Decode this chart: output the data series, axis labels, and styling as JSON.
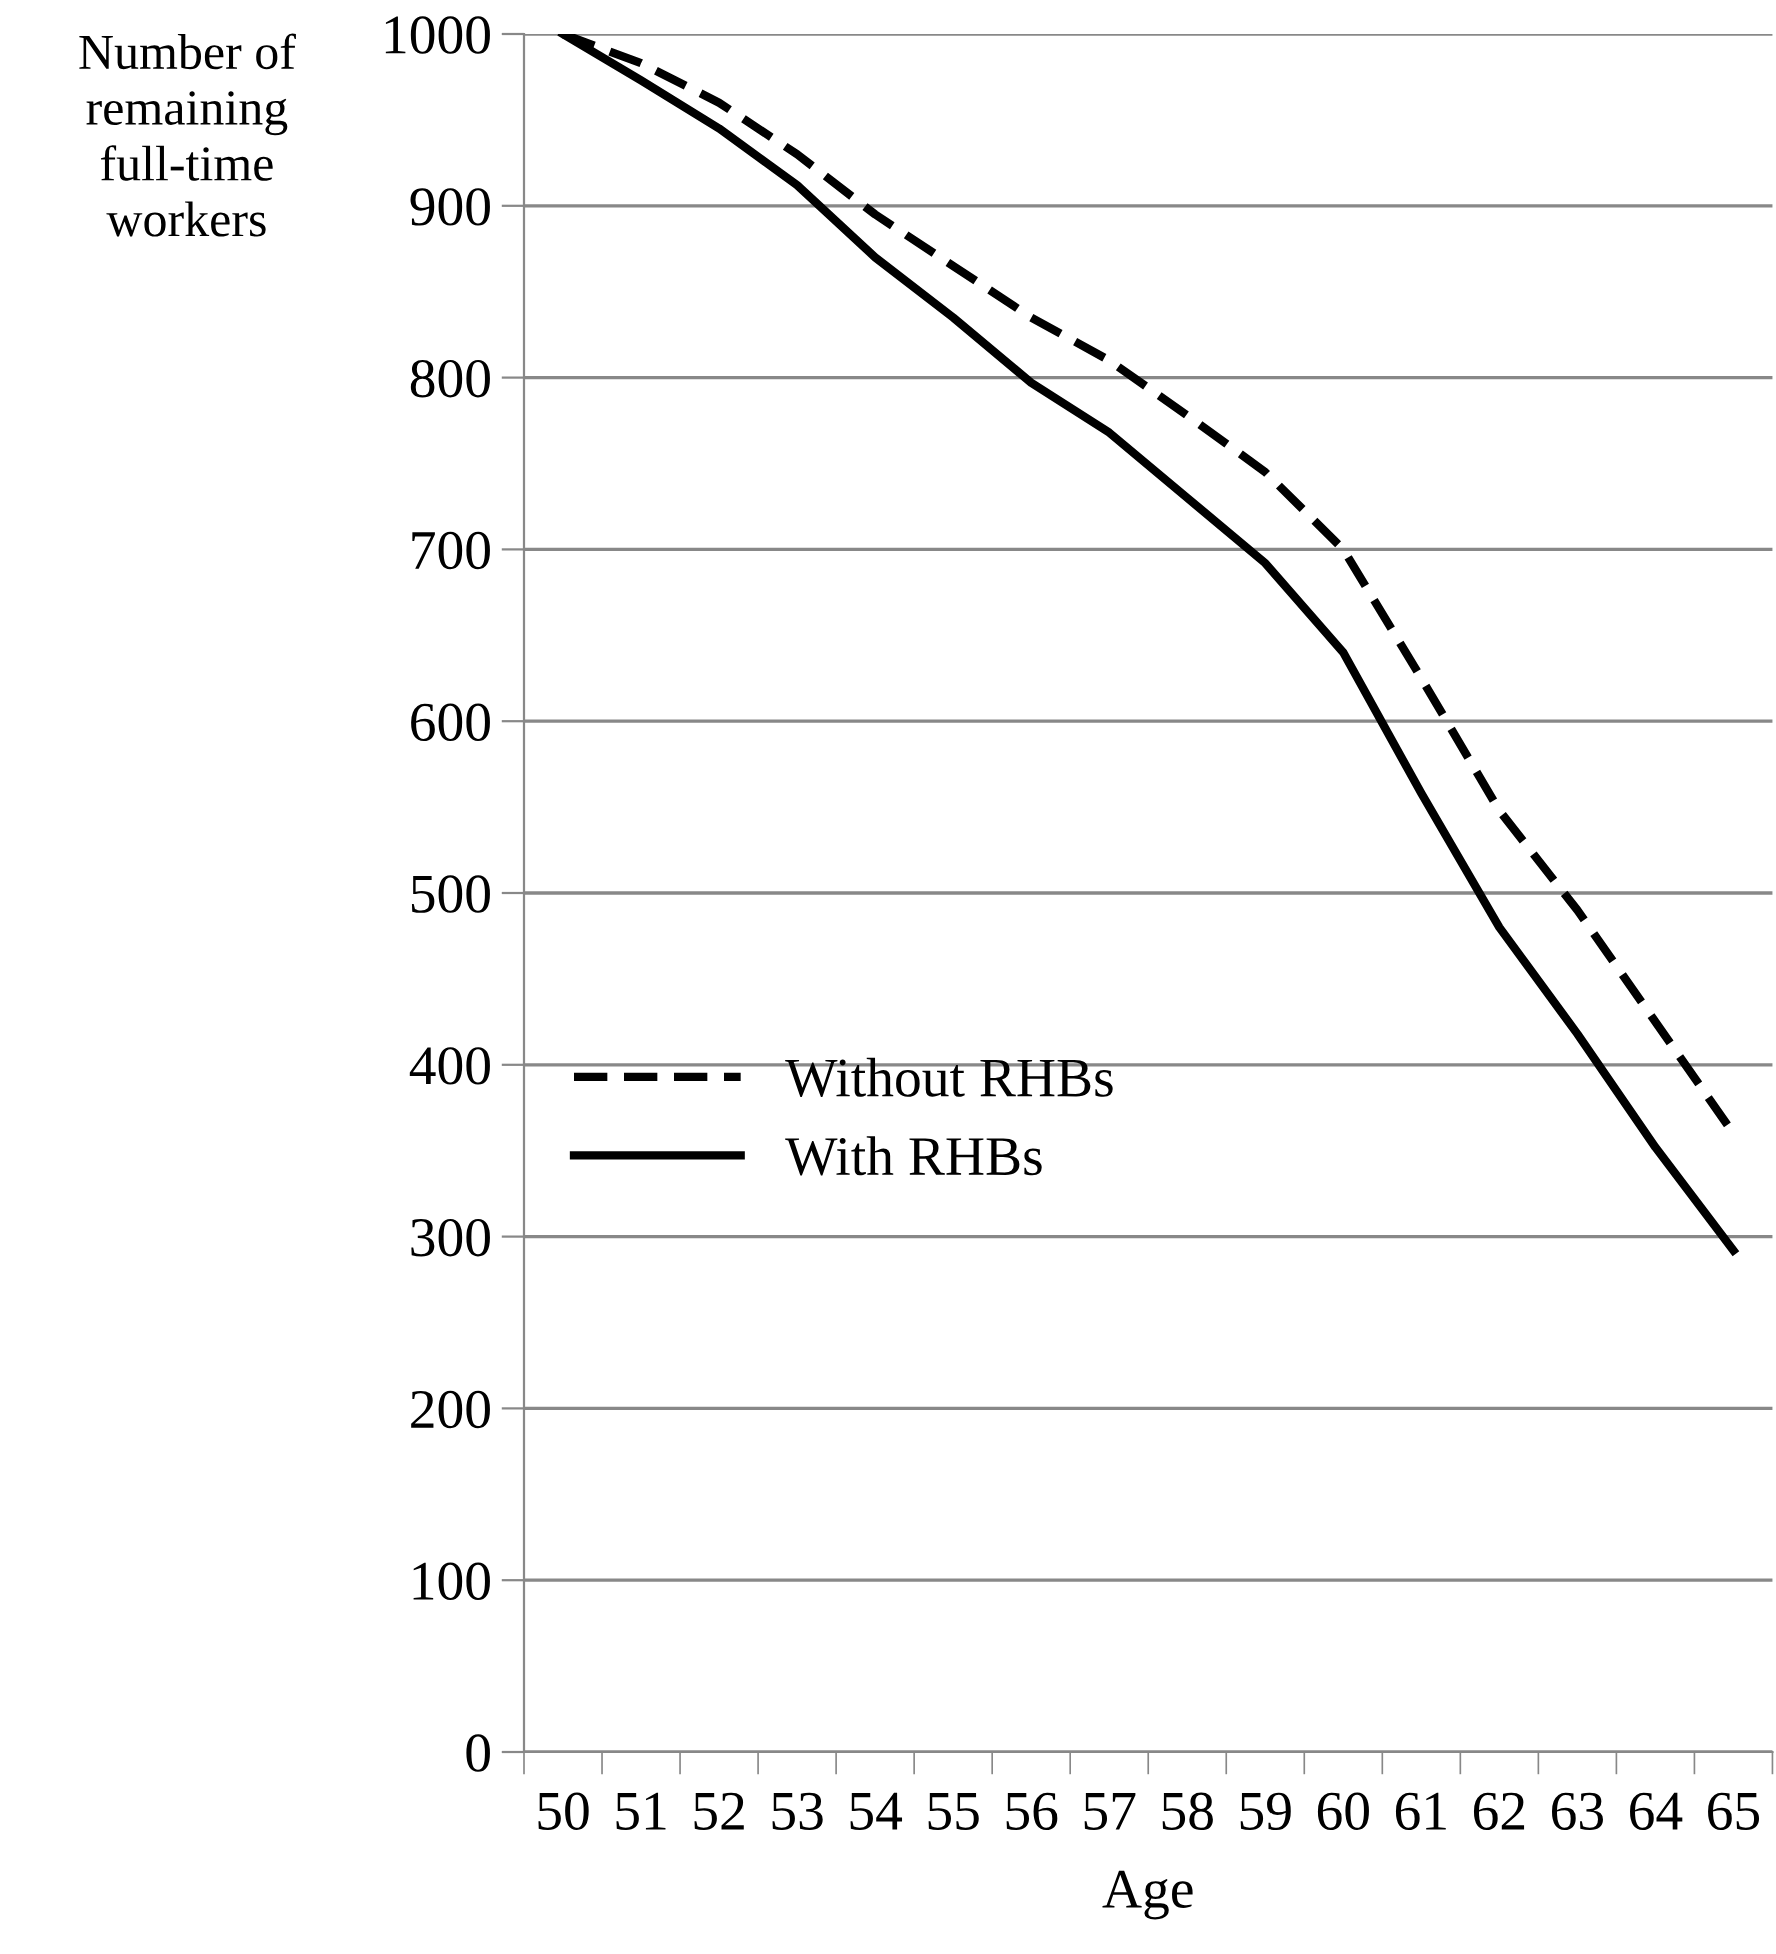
{
  "chart_data": {
    "type": "line",
    "xlabel": "Age",
    "ylabel": "Number of\nremaining\nfull-time\nworkers",
    "categories": [
      "50",
      "51",
      "52",
      "53",
      "54",
      "55",
      "56",
      "57",
      "58",
      "59",
      "60",
      "61",
      "62",
      "63",
      "64",
      "65"
    ],
    "series": [
      {
        "name": "Without RHBs",
        "color": "#000000",
        "line_style": "dashed",
        "values": [
          1000,
          983,
          960,
          930,
          895,
          865,
          835,
          810,
          778,
          745,
          700,
          625,
          548,
          490,
          425,
          360
        ]
      },
      {
        "name": "With RHBs",
        "color": "#000000",
        "line_style": "solid",
        "values": [
          1000,
          973,
          945,
          912,
          870,
          835,
          797,
          768,
          730,
          692,
          640,
          558,
          480,
          418,
          352,
          292
        ]
      }
    ],
    "ylim": [
      0,
      1000
    ],
    "yticks": [
      0,
      100,
      200,
      300,
      400,
      500,
      600,
      700,
      800,
      900,
      1000
    ],
    "grid": "y",
    "legend": "center",
    "marker": "none"
  }
}
